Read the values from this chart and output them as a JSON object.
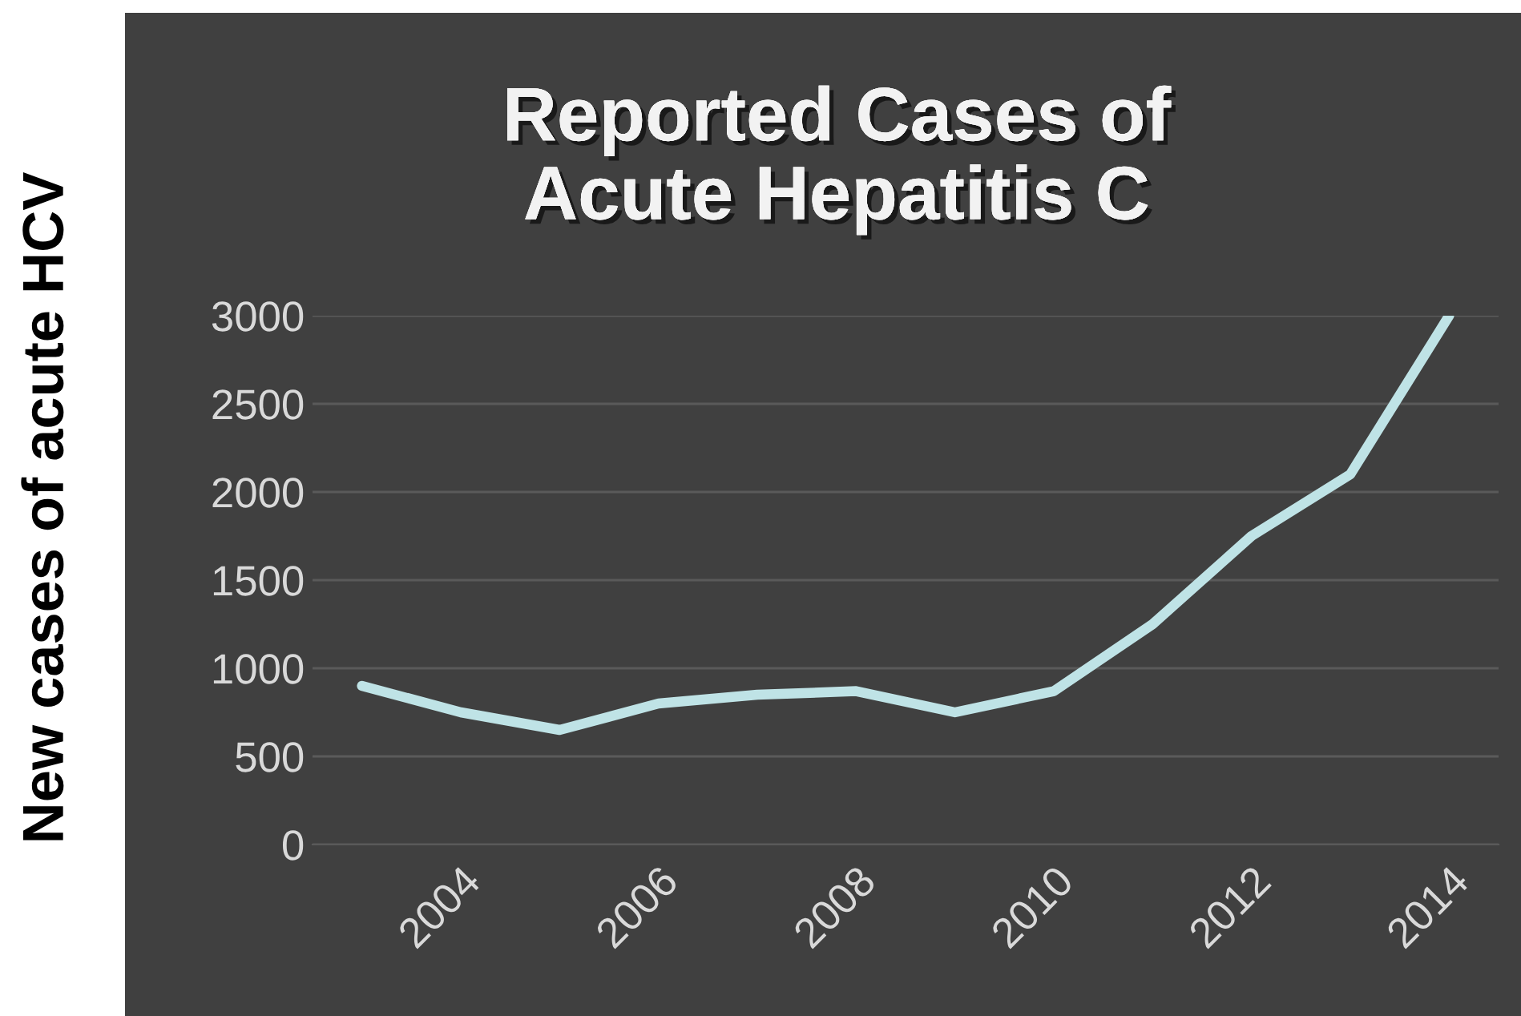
{
  "chart_data": {
    "type": "line",
    "title": "Reported Cases of\nAcute Hepatitis C",
    "ylabel": "New cases of acute HCV",
    "categories": [
      null,
      "2004",
      null,
      "2006",
      null,
      "2008",
      null,
      "2010",
      null,
      "2012",
      null,
      "2014"
    ],
    "series": [
      {
        "color": "#bfe3e6",
        "values": [
          900,
          750,
          650,
          800,
          850,
          870,
          750,
          870,
          1250,
          1750,
          2100,
          3000
        ]
      }
    ],
    "ylim": [
      0,
      3000
    ],
    "yticks": [
      0,
      500,
      1000,
      1500,
      2000,
      2500,
      3000
    ],
    "grid": "y",
    "legend": false,
    "marker": "none",
    "line_style": "solid"
  }
}
